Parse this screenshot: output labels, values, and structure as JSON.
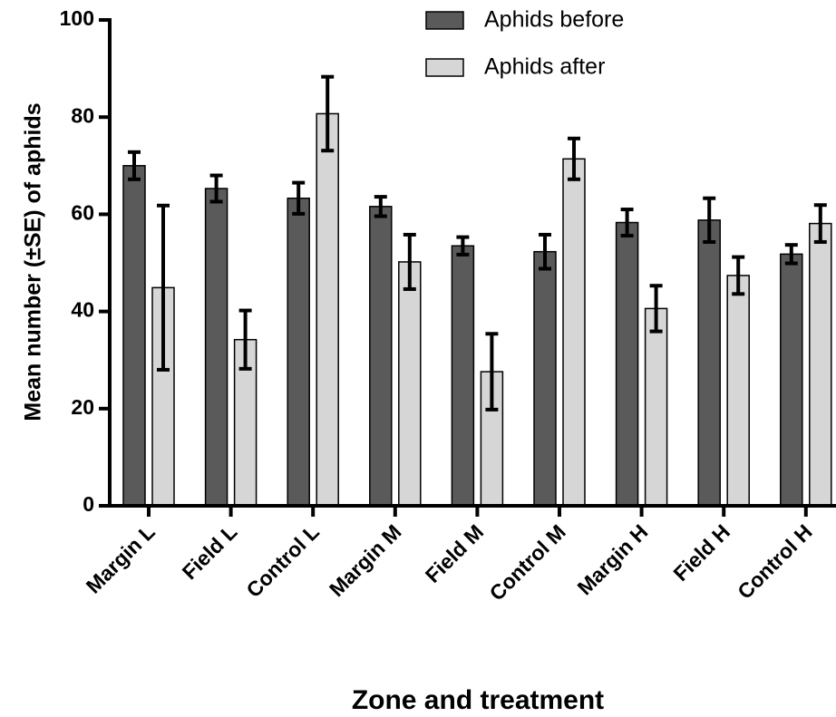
{
  "chart_data": {
    "type": "bar",
    "title": "",
    "xlabel": "Zone and treatment",
    "ylabel": "Mean number (±SE) of aphids",
    "ylim": [
      0,
      100
    ],
    "yticks": [
      0,
      20,
      40,
      60,
      80,
      100
    ],
    "grid": false,
    "legend_position": "top-right",
    "categories": [
      "Margin L",
      "Field L",
      "Control L",
      "Margin M",
      "Field M",
      "Control M",
      "Margin H",
      "Field H",
      "Control H"
    ],
    "series": [
      {
        "name": "Aphids before",
        "color": "#5a5a5a",
        "values": [
          70.0,
          65.3,
          63.3,
          61.6,
          53.5,
          52.3,
          58.3,
          58.8,
          51.8
        ],
        "error": [
          2.8,
          2.7,
          3.2,
          2.0,
          1.8,
          3.5,
          2.7,
          4.5,
          1.9
        ]
      },
      {
        "name": "Aphids after",
        "color": "#d6d6d6",
        "values": [
          44.9,
          34.2,
          80.7,
          50.2,
          27.6,
          71.4,
          40.6,
          47.4,
          58.1
        ],
        "error": [
          16.9,
          6.0,
          7.6,
          5.6,
          7.8,
          4.2,
          4.7,
          3.8,
          3.8
        ]
      }
    ]
  }
}
